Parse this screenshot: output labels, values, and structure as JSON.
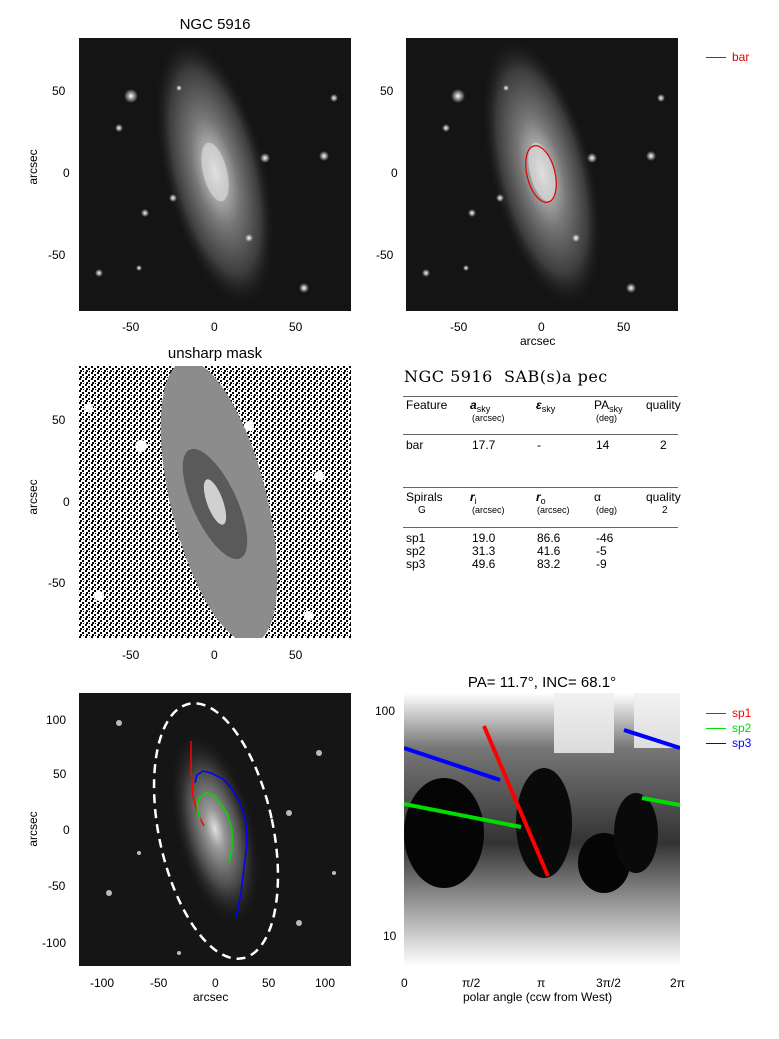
{
  "panel1": {
    "title": "NGC 5916",
    "ylabel": "arcsec",
    "xticks": [
      "-50",
      "0",
      "50"
    ],
    "yticks": [
      "50",
      "0",
      "-50"
    ]
  },
  "panel2": {
    "xlabel": "arcsec",
    "xticks": [
      "-50",
      "0",
      "50"
    ],
    "yticks": [
      "50",
      "0",
      "-50"
    ],
    "legend": {
      "label": "bar",
      "color": "#e00000"
    }
  },
  "panel3": {
    "title": "unsharp mask",
    "ylabel": "arcsec",
    "xticks": [
      "-50",
      "0",
      "50"
    ],
    "yticks": [
      "50",
      "0",
      "-50"
    ]
  },
  "table": {
    "title": "NGC 5916  SAB(s)a pec",
    "bar_header": {
      "feature": "Feature",
      "a": "a",
      "a_sub": "sky",
      "a_unit": "(arcsec)",
      "eps": "ε",
      "eps_sub": "sky",
      "pa": "PA",
      "pa_sub": "sky",
      "pa_unit": "(deg)",
      "quality": "quality"
    },
    "bar_row": {
      "name": "bar",
      "a": "17.7",
      "eps": "-",
      "pa": "14",
      "quality": "2"
    },
    "spiral_header": {
      "spirals": "Spirals",
      "g": "G",
      "ri": "r",
      "ri_sub": "i",
      "ri_unit": "(arcsec)",
      "ro": "r",
      "ro_sub": "o",
      "ro_unit": "(arcsec)",
      "alpha": "α",
      "alpha_unit": "(deg)",
      "quality": "quality",
      "quality_val": "2"
    },
    "spiral_rows": [
      {
        "name": "sp1",
        "ri": "19.0",
        "ro": "86.6",
        "alpha": "-46"
      },
      {
        "name": "sp2",
        "ri": "31.3",
        "ro": "41.6",
        "alpha": "-5"
      },
      {
        "name": "sp3",
        "ri": "49.6",
        "ro": "83.2",
        "alpha": "-9"
      }
    ]
  },
  "panel5": {
    "xlabel": "arcsec",
    "ylabel": "arcsec",
    "xticks": [
      "-100",
      "-50",
      "0",
      "50",
      "100"
    ],
    "yticks": [
      "100",
      "50",
      "0",
      "-50",
      "-100"
    ]
  },
  "panel6": {
    "title": "PA=  11.7°, INC=  68.1°",
    "xlabel": "polar angle (ccw from West)",
    "xticks": [
      "0",
      "π/2",
      "π",
      "3π/2",
      "2π"
    ],
    "yticks": [
      "100",
      "10"
    ],
    "legend": [
      {
        "label": "sp1",
        "color": "#ff0000"
      },
      {
        "label": "sp2",
        "color": "#00dd00"
      },
      {
        "label": "sp3",
        "color": "#0000ff"
      }
    ]
  }
}
